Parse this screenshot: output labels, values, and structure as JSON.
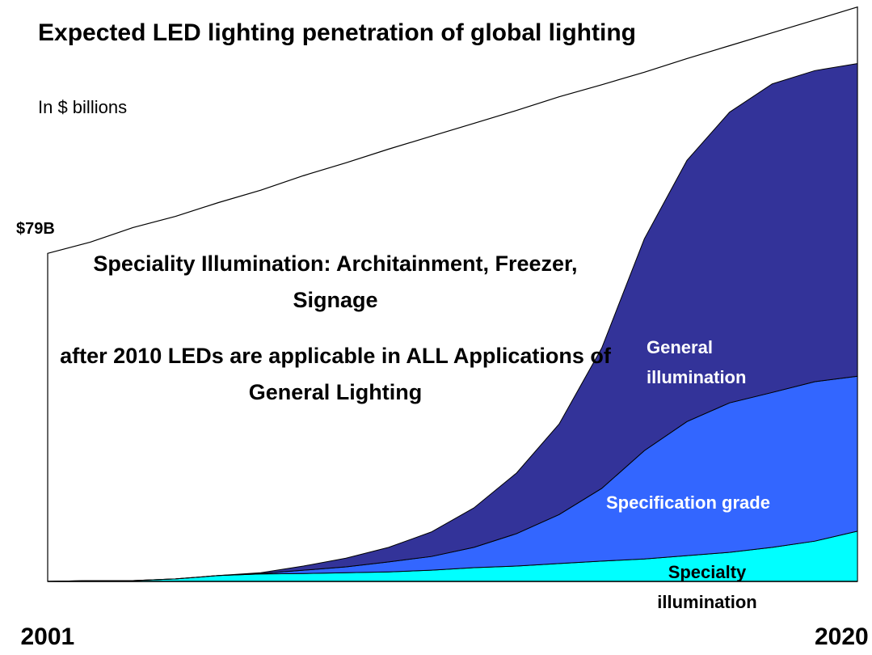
{
  "chart_data": {
    "type": "area",
    "title": "Expected LED lighting penetration of global lighting",
    "subtitle": "In $ billions",
    "start_label": "$79B",
    "annotations": [
      "Speciality Illumination: Architainment, Freezer, Signage",
      "after 2010 LEDs are applicable in ALL Applications of General Lighting"
    ],
    "x": [
      2001,
      2002,
      2003,
      2004,
      2005,
      2006,
      2007,
      2008,
      2009,
      2010,
      2011,
      2012,
      2013,
      2014,
      2015,
      2016,
      2017,
      2018,
      2019,
      2020
    ],
    "xlim": [
      2001,
      2020
    ],
    "xticks": [
      2001,
      2020
    ],
    "ylim": [
      0,
      140
    ],
    "stacked": true,
    "total": [
      79,
      81.7,
      85.2,
      87.9,
      91.2,
      94.2,
      97.7,
      100.8,
      104.1,
      107.2,
      110.3,
      113.4,
      116.7,
      119.6,
      122.6,
      125.9,
      129.0,
      132.1,
      135.2,
      138.3
    ],
    "series": [
      {
        "name": "Specialty illumination",
        "color": "#00ffff",
        "label_color": "#000000",
        "values": [
          0,
          0.2,
          0.2,
          0.6,
          1.4,
          1.8,
          1.9,
          2.1,
          2.3,
          2.7,
          3.3,
          3.7,
          4.3,
          4.9,
          5.4,
          6.2,
          7.0,
          8.2,
          9.7,
          12.1
        ]
      },
      {
        "name": "Specification grade",
        "color": "#3366ff",
        "label_color": "#ffffff",
        "values": [
          0,
          0,
          0,
          0,
          0,
          0.1,
          0.8,
          1.4,
          2.4,
          3.3,
          4.9,
          7.8,
          11.8,
          17.5,
          26.1,
          32.3,
          36.0,
          37.3,
          38.4,
          37.3
        ]
      },
      {
        "name": "General illumination",
        "color": "#333399",
        "label_color": "#ffffff",
        "values": [
          0,
          0,
          0,
          0,
          0,
          0.2,
          1.0,
          2.1,
          3.5,
          5.9,
          9.5,
          14.6,
          21.8,
          33.8,
          51.0,
          62.9,
          70.0,
          74.3,
          74.9,
          75.3
        ]
      }
    ],
    "grid": false
  }
}
